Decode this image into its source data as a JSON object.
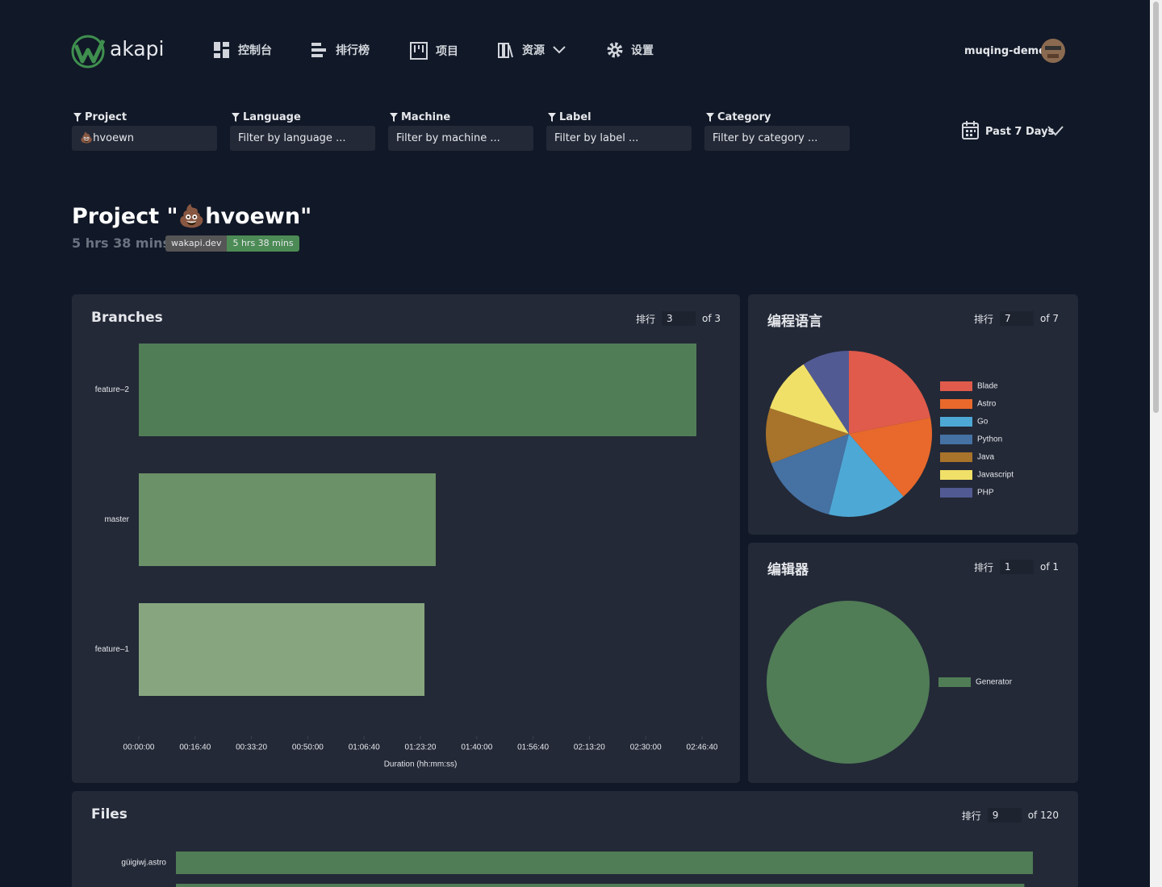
{
  "nav": {
    "logo": "akapi",
    "items": [
      "控制台",
      "排行榜",
      "项目",
      "资源",
      "设置"
    ],
    "user": "muqing-demo"
  },
  "filters": [
    {
      "label": "Project",
      "value": "💩hvoewn"
    },
    {
      "label": "Language",
      "value": "Filter by language ..."
    },
    {
      "label": "Machine",
      "value": "Filter by machine ..."
    },
    {
      "label": "Label",
      "value": "Filter by label ..."
    },
    {
      "label": "Category",
      "value": "Filter by category ..."
    }
  ],
  "date_range": "Past 7 Days",
  "header": {
    "title": "Project \"💩hvoewn\"",
    "total": "5 hrs 38 mins",
    "badge_label": "wakapi.dev",
    "badge_value": "5 hrs 38 mins"
  },
  "panels": [
    {
      "title": "Branches",
      "rank_label": "排行",
      "rank": 3,
      "of": "of 3",
      "chart_data": {
        "type": "hbar",
        "categories": [
          "feature–2",
          "master",
          "feature–1"
        ],
        "values": [
          9900,
          5272,
          5072
        ],
        "colors": [
          "#507c56",
          "#6b9168",
          "#87a67f"
        ],
        "xlim": [
          0,
          10000
        ],
        "xticks": [
          {
            "value": 0,
            "label": "00:00:00"
          },
          {
            "value": 1000,
            "label": "00:16:40"
          },
          {
            "value": 2000,
            "label": "00:33:20"
          },
          {
            "value": 3000,
            "label": "00:50:00"
          },
          {
            "value": 4000,
            "label": "01:06:40"
          },
          {
            "value": 5000,
            "label": "01:23:20"
          },
          {
            "value": 6000,
            "label": "01:40:00"
          },
          {
            "value": 7000,
            "label": "01:56:40"
          },
          {
            "value": 8000,
            "label": "02:13:20"
          },
          {
            "value": 9000,
            "label": "02:30:00"
          },
          {
            "value": 10000,
            "label": "02:46:40"
          }
        ],
        "xlabel": "Duration (hh:mm:ss)"
      }
    },
    {
      "title": "编程语言",
      "rank_label": "排行",
      "rank": 7,
      "of": "of 7",
      "chart_data": {
        "type": "pie",
        "categories": [
          "Blade",
          "Astro",
          "Go",
          "Python",
          "Java",
          "Javascript",
          "PHP"
        ],
        "values": [
          21.9,
          16.7,
          15.3,
          15.3,
          10.8,
          10.8,
          9.2
        ],
        "colors": [
          "#e05b4b",
          "#e8692b",
          "#4ea8d5",
          "#4671a3",
          "#a8732b",
          "#f0e068",
          "#525a94"
        ]
      }
    },
    {
      "title": "编辑器",
      "rank_label": "排行",
      "rank": 1,
      "of": "of 1",
      "chart_data": {
        "type": "pie",
        "categories": [
          "Generator"
        ],
        "values": [
          100
        ],
        "colors": [
          "#507c56"
        ]
      }
    },
    {
      "title": "Files",
      "rank_label": "排行",
      "rank": 9,
      "of": "of 120",
      "chart_data": {
        "type": "hbar",
        "categories": [
          "güigiwj.astro",
          null
        ],
        "values": [
          100,
          99
        ],
        "colors": [
          "#507c56",
          "#507c56"
        ],
        "xlim": [
          0,
          100
        ]
      }
    }
  ]
}
